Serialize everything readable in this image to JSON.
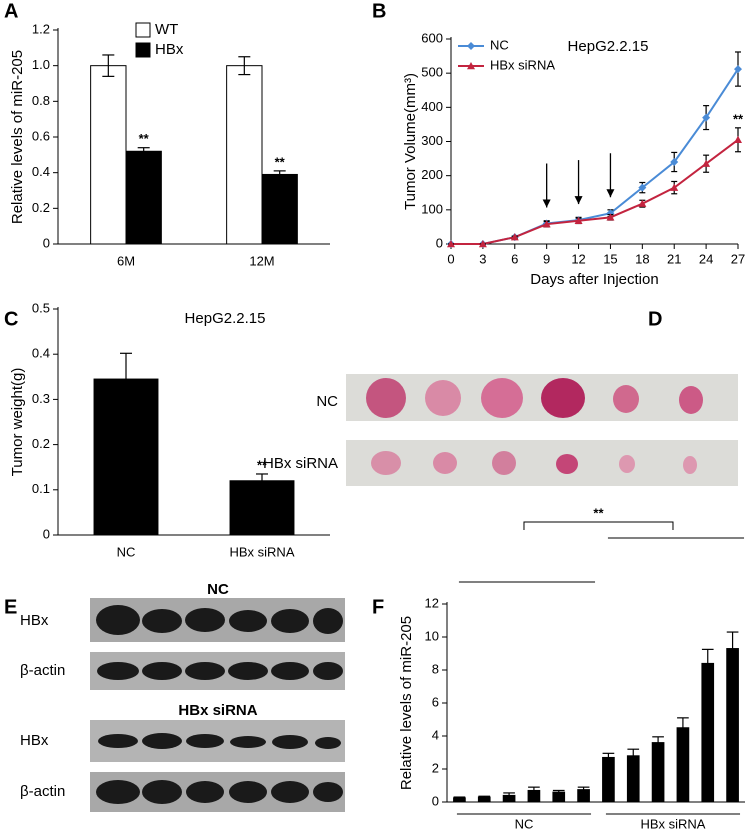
{
  "chart_data": [
    {
      "type": "bar",
      "ylabel": "Relative levels of miR-205",
      "categories": [
        "6M",
        "12M"
      ],
      "series": [
        {
          "name": "WT",
          "color": "#ffffff",
          "values": [
            1.0,
            1.0
          ],
          "errors": [
            0.06,
            0.05
          ]
        },
        {
          "name": "HBx",
          "color": "#000000",
          "values": [
            0.52,
            0.39
          ],
          "errors": [
            0.02,
            0.02
          ],
          "significance": [
            "**",
            "**"
          ]
        }
      ],
      "ylim": [
        0,
        1.2
      ],
      "yticks": [
        0,
        0.2,
        0.4,
        0.6,
        0.8,
        {
          "value": 1,
          "label": "1.0"
        },
        1.2
      ],
      "error_bars": "both"
    },
    {
      "type": "line",
      "title": "HepG2.2.15",
      "xlabel": "Days after Injection",
      "ylabel": "Tumor Volume(mm³)",
      "x": [
        0,
        3,
        6,
        9,
        12,
        15,
        18,
        21,
        24,
        27
      ],
      "series": [
        {
          "name": "NC",
          "color": "#4a8bd6",
          "marker": "diamond",
          "values": [
            0,
            0,
            20,
            60,
            70,
            90,
            165,
            240,
            370,
            512
          ],
          "errors": [
            0,
            0,
            3,
            8,
            8,
            10,
            15,
            28,
            35,
            50
          ]
        },
        {
          "name": "HBx siRNA",
          "color": "#c3243f",
          "marker": "triangle",
          "values": [
            0,
            0,
            20,
            58,
            68,
            78,
            118,
            165,
            235,
            305
          ],
          "errors": [
            0,
            0,
            3,
            8,
            8,
            8,
            10,
            18,
            25,
            35
          ],
          "significance": [
            null,
            null,
            null,
            null,
            null,
            null,
            null,
            null,
            null,
            "**"
          ]
        }
      ],
      "arrows": [
        9,
        12,
        15
      ],
      "xlim": [
        0,
        27
      ],
      "xticks": [
        0,
        3,
        6,
        9,
        12,
        15,
        18,
        21,
        24,
        27
      ],
      "ylim": [
        0,
        600
      ],
      "yticks": [
        0,
        100,
        200,
        300,
        400,
        500,
        600
      ],
      "error_bars": "both"
    },
    {
      "type": "bar",
      "title": "HepG2.2.15",
      "ylabel": "Tumor weight(g)",
      "categories": [
        "NC",
        "HBx siRNA"
      ],
      "values": [
        0.345,
        0.12
      ],
      "errors": [
        0.057,
        0.015
      ],
      "significance": [
        null,
        "**"
      ],
      "color": "#000000",
      "ylim": [
        0,
        0.5
      ],
      "yticks": [
        0,
        0.1,
        0.2,
        0.3,
        0.4,
        0.5
      ],
      "error_bars": "up"
    },
    {
      "type": "bar",
      "ylabel": "Relative levels of miR-205",
      "groups": [
        "NC",
        "HBx siRNA"
      ],
      "comparison": "**",
      "values": [
        0.25,
        0.3,
        0.4,
        0.7,
        0.6,
        0.75,
        2.7,
        2.8,
        3.6,
        4.5,
        8.4,
        9.3
      ],
      "errors": [
        0.05,
        0.05,
        0.15,
        0.2,
        0.1,
        0.15,
        0.25,
        0.4,
        0.35,
        0.6,
        0.85,
        1.0
      ],
      "color": "#000000",
      "ylim": [
        0,
        12
      ],
      "yticks": [
        0,
        2,
        4,
        6,
        8,
        10,
        12
      ],
      "error_bars": "up"
    }
  ],
  "figure": {
    "panel_letters": [
      "A",
      "B",
      "C",
      "D",
      "E",
      "F"
    ],
    "d": {
      "rows": [
        "NC",
        "HBx siRNA"
      ]
    },
    "e": {
      "groups": [
        {
          "title": "NC",
          "rows": [
            "HBx",
            "β-actin"
          ]
        },
        {
          "title": "HBx siRNA",
          "rows": [
            "HBx",
            "β-actin"
          ]
        }
      ]
    }
  }
}
